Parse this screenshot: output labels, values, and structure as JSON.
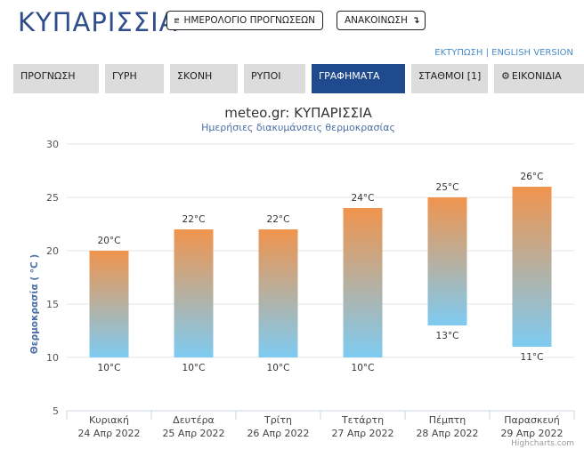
{
  "header": {
    "city": "ΚΥΠΑΡΙΣΣΙΑ",
    "calendar_button": "ΗΜΕΡΟΛΟΓΙΟ ΠΡΟΓΝΩΣΕΩΝ",
    "announce_button": "ΑΝΑΚΟΙΝΩΣΗ",
    "announce_arrow": "↴",
    "print_link": "ΕΚΤΥΠΩΣΗ",
    "separator": "|",
    "english_link": "ENGLISH VERSION"
  },
  "tabs": [
    {
      "label": "ΠΡΟΓΝΩΣΗ",
      "active": false
    },
    {
      "label": "ΓΥΡΗ",
      "active": false
    },
    {
      "label": "ΣΚΟΝΗ",
      "active": false
    },
    {
      "label": "ΡΥΠΟΙ",
      "active": false
    },
    {
      "label": "ΓΡΑΦΗΜΑΤΑ",
      "active": true
    },
    {
      "label": "ΣΤΑΘΜΟΙ [1]",
      "active": false
    },
    {
      "label": "ΕΙΚΟΝΙΔΙΑ",
      "active": false,
      "icon": "gear-icon"
    }
  ],
  "chart_data": {
    "type": "bar",
    "title": "meteo.gr: ΚΥΠΑΡΙΣΣΙΑ",
    "subtitle": "Ημερήσιες διακυμάνσεις θερμοκρασίας",
    "ylabel": "Θερμοκρασία ( °C )",
    "ylim": [
      5,
      30
    ],
    "yticks": [
      5,
      10,
      15,
      20,
      25,
      30
    ],
    "categories": [
      {
        "day": "Κυριακή",
        "date": "24 Απρ 2022"
      },
      {
        "day": "Δευτέρα",
        "date": "25 Απρ 2022"
      },
      {
        "day": "Τρίτη",
        "date": "26 Απρ 2022"
      },
      {
        "day": "Τετάρτη",
        "date": "27 Απρ 2022"
      },
      {
        "day": "Πέμπτη",
        "date": "28 Απρ 2022"
      },
      {
        "day": "Παρασκευή",
        "date": "29 Απρ 2022"
      }
    ],
    "low": [
      10,
      10,
      10,
      10,
      13,
      11
    ],
    "high": [
      20,
      22,
      22,
      24,
      25,
      26
    ],
    "unit": "°C",
    "colors": {
      "top": "#f0944d",
      "bottom": "#7ecbf2"
    },
    "credit": "Highcharts.com"
  }
}
